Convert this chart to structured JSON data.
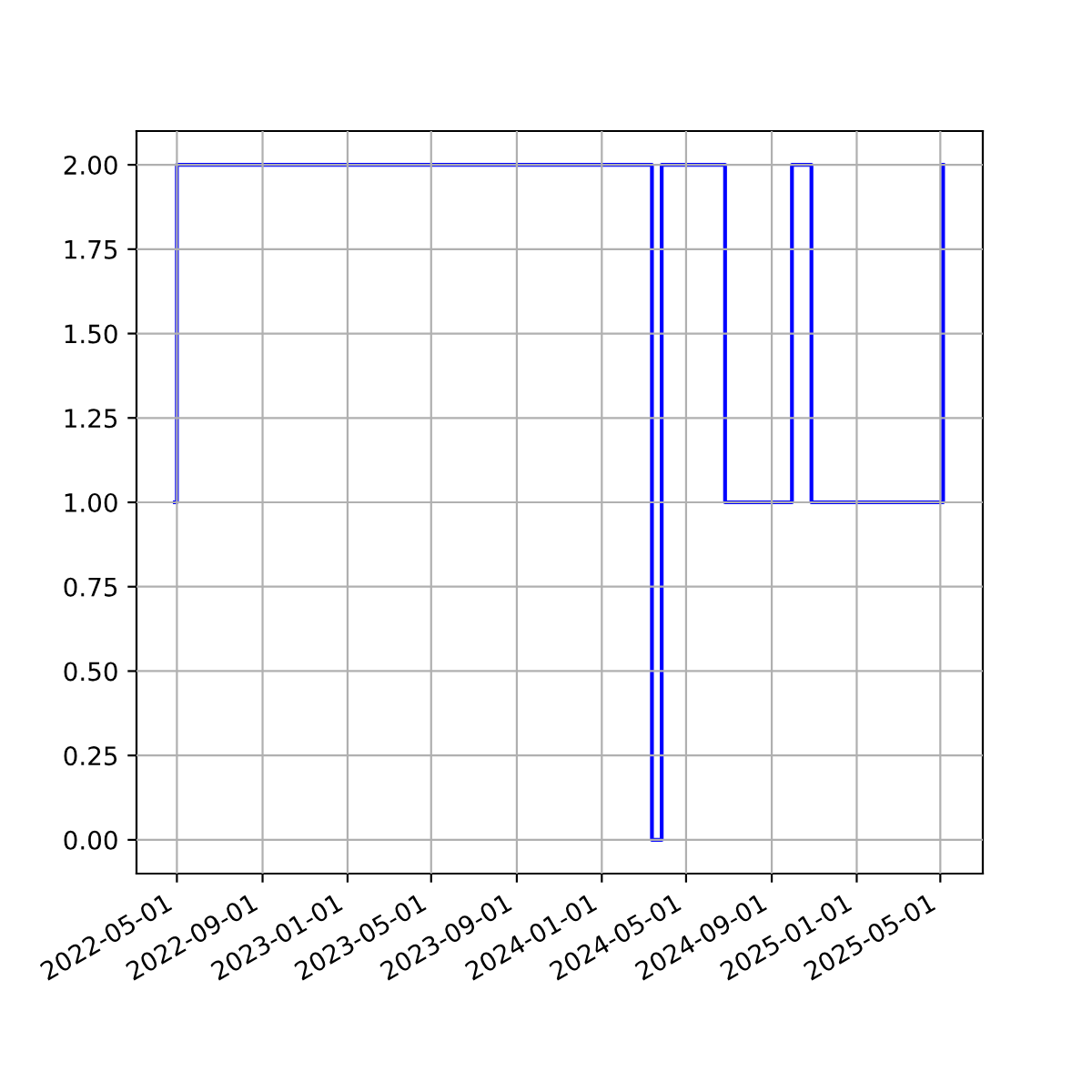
{
  "chart_data": {
    "type": "step",
    "x": [
      "2022-04-28",
      "2022-05-01",
      "2024-03-13",
      "2024-03-27",
      "2024-06-26",
      "2024-09-30",
      "2024-10-28",
      "2025-05-05"
    ],
    "series": [
      {
        "color": "#0000ff",
        "values": [
          1,
          2,
          0,
          2,
          1,
          2,
          1,
          2
        ]
      }
    ],
    "xlim": [
      "2022-03-04",
      "2025-07-01"
    ],
    "xticks": [
      "2022-05-01",
      "2022-09-01",
      "2023-01-01",
      "2023-05-01",
      "2023-09-01",
      "2024-01-01",
      "2024-05-01",
      "2024-09-01",
      "2025-01-01",
      "2025-05-01"
    ],
    "ylim": [
      -0.1,
      2.1
    ],
    "yticks": [
      {
        "value": 0,
        "label": "0.00"
      },
      {
        "value": 0.25,
        "label": "0.25"
      },
      {
        "value": 0.5,
        "label": "0.50"
      },
      {
        "value": 0.75,
        "label": "0.75"
      },
      {
        "value": 1,
        "label": "1.00"
      },
      {
        "value": 1.25,
        "label": "1.25"
      },
      {
        "value": 1.5,
        "label": "1.50"
      },
      {
        "value": 1.75,
        "label": "1.75"
      },
      {
        "value": 2,
        "label": "2.00"
      }
    ],
    "grid": true
  }
}
